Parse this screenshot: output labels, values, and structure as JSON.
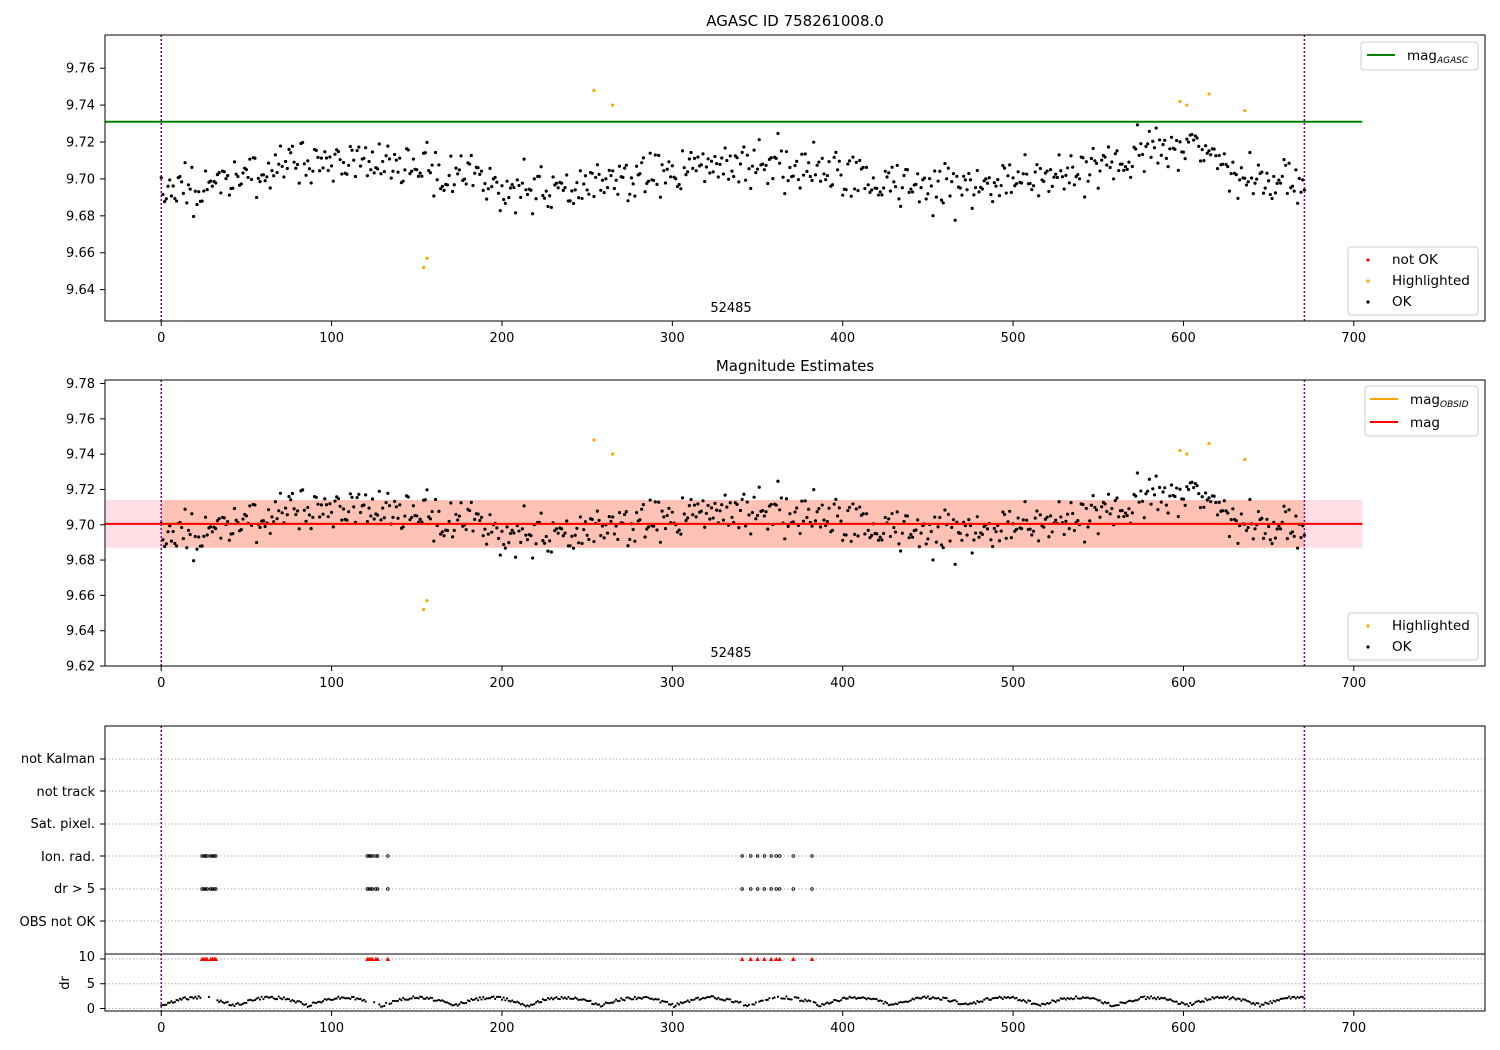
{
  "colors": {
    "ok": "#000000",
    "highlighted": "#ffa500",
    "not_ok": "#ff0000",
    "agasc_line": "#008000",
    "mag_line": "#ff0000",
    "obsid_line": "#ffa500",
    "band_outer": "#ffc0cb",
    "band_inner": "#ffa07a",
    "obsid_boundary": "#800080",
    "grid": "#b0b0b0"
  },
  "chart_data": [
    {
      "type": "scatter",
      "title": "AGASC ID 758261008.0",
      "xlim": [
        -33,
        777
      ],
      "ylim": [
        9.623,
        9.778
      ],
      "xticks": [
        "0",
        "100",
        "200",
        "300",
        "400",
        "500",
        "600",
        "700"
      ],
      "yticks": [
        "9.64",
        "9.66",
        "9.68",
        "9.70",
        "9.72",
        "9.74",
        "9.76"
      ],
      "obsid_label": "52485",
      "obsid_boundaries": [
        0,
        671
      ],
      "lines": [
        {
          "name": "mag_AGASC",
          "y": 9.731,
          "x": [
            -33,
            705
          ],
          "color": "green"
        }
      ],
      "legend_lines": {
        "position": "upper right",
        "entries": [
          {
            "base": "mag",
            "sub": "AGASC",
            "color": "green"
          }
        ]
      },
      "legend_points": {
        "position": "lower right",
        "entries": [
          {
            "label": "not OK",
            "color": "red"
          },
          {
            "label": "Highlighted",
            "color": "orange"
          },
          {
            "label": "OK",
            "color": "black"
          }
        ]
      },
      "series": [
        {
          "name": "Highlighted",
          "points": [
            [
              154,
              9.652
            ],
            [
              156,
              9.657
            ],
            [
              254,
              9.748
            ],
            [
              265,
              9.74
            ],
            [
              598,
              9.742
            ],
            [
              602,
              9.74
            ],
            [
              615,
              9.746
            ],
            [
              636,
              9.737
            ]
          ]
        }
      ]
    },
    {
      "type": "scatter",
      "title": "Magnitude Estimates",
      "xlim": [
        -33,
        777
      ],
      "ylim": [
        9.62,
        9.782
      ],
      "xticks": [
        "0",
        "100",
        "200",
        "300",
        "400",
        "500",
        "600",
        "700"
      ],
      "yticks": [
        "9.62",
        "9.64",
        "9.66",
        "9.68",
        "9.70",
        "9.72",
        "9.74",
        "9.76",
        "9.78"
      ],
      "obsid_label": "52485",
      "obsid_boundaries": [
        0,
        671
      ],
      "lines": [
        {
          "name": "mag_OBSID",
          "y": 9.7005,
          "x": [
            0,
            671
          ],
          "color": "orange"
        },
        {
          "name": "mag",
          "y": 9.7005,
          "x": [
            -33,
            705
          ],
          "color": "red"
        }
      ],
      "bands": [
        {
          "y": [
            9.687,
            9.714
          ],
          "x": [
            -33,
            705
          ],
          "color": "pink"
        },
        {
          "y": [
            9.687,
            9.714
          ],
          "x": [
            0,
            671
          ],
          "color": "lightsalmon"
        }
      ],
      "legend_lines": {
        "position": "upper right",
        "entries": [
          {
            "base": "mag",
            "sub": "OBSID",
            "color": "orange"
          },
          {
            "base": "mag",
            "sub": "",
            "color": "red"
          }
        ]
      },
      "legend_points": {
        "position": "lower right",
        "entries": [
          {
            "label": "Highlighted",
            "color": "orange"
          },
          {
            "label": "OK",
            "color": "black"
          }
        ]
      },
      "series": [
        {
          "name": "Highlighted",
          "points": [
            [
              154,
              9.652
            ],
            [
              156,
              9.657
            ],
            [
              254,
              9.748
            ],
            [
              265,
              9.74
            ],
            [
              598,
              9.742
            ],
            [
              602,
              9.74
            ],
            [
              615,
              9.746
            ],
            [
              636,
              9.737
            ]
          ]
        }
      ]
    },
    {
      "type": "scatter",
      "xlim": [
        -33,
        777
      ],
      "xticks": [
        "0",
        "100",
        "200",
        "300",
        "400",
        "500",
        "600",
        "700"
      ],
      "flag_rows": [
        "not Kalman",
        "not track",
        "Sat. pixel.",
        "Ion. rad.",
        "dr > 5",
        "OBS not OK"
      ],
      "flags": [
        {
          "row": "Ion. rad.",
          "x": [
            24,
            25,
            26,
            27,
            29,
            30,
            31,
            32,
            121,
            122,
            123,
            124,
            126,
            127,
            133,
            341,
            346,
            350,
            354,
            358,
            361,
            363,
            371,
            382
          ]
        },
        {
          "row": "dr > 5",
          "x": [
            24,
            25,
            26,
            27,
            29,
            30,
            31,
            32,
            121,
            122,
            123,
            124,
            126,
            127,
            133,
            341,
            346,
            350,
            354,
            358,
            361,
            363,
            371,
            382
          ]
        }
      ],
      "dr_panel": {
        "ylabel": "dr",
        "yticks": [
          "0",
          "5",
          "10"
        ],
        "ylim": [
          -0.5,
          11
        ],
        "flagged_x": [
          24,
          25,
          26,
          27,
          29,
          30,
          31,
          32,
          121,
          122,
          123,
          124,
          126,
          127,
          133,
          341,
          346,
          350,
          354,
          358,
          361,
          363,
          371,
          382
        ],
        "flagged_y": 10
      }
    }
  ]
}
